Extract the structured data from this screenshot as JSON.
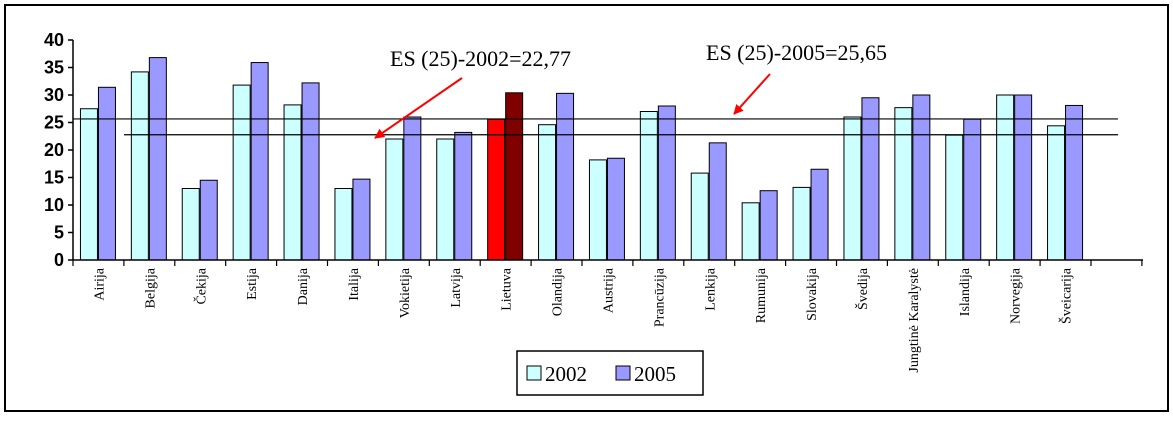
{
  "chart_data": {
    "type": "bar",
    "categories": [
      "Airija",
      "Belgija",
      "Čekija",
      "Estija",
      "Danija",
      "Italija",
      "Vokietija",
      "Latvija",
      "Lietuva",
      "Olandija",
      "Austrija",
      "Prancūzija",
      "Lenkija",
      "Rumunija",
      "Slovakija",
      "Švedija",
      "Jungtinė Karalystė",
      "Islandija",
      "Norvegija",
      "Šveicarija"
    ],
    "series": [
      {
        "name": "2002",
        "values": [
          27.5,
          34.2,
          13.0,
          31.8,
          28.2,
          13.0,
          22.0,
          22.0,
          25.6,
          24.6,
          18.2,
          27.0,
          15.8,
          10.4,
          13.2,
          26.0,
          27.7,
          22.7,
          30.0,
          24.4
        ]
      },
      {
        "name": "2005",
        "values": [
          31.4,
          36.8,
          14.5,
          35.9,
          32.2,
          14.7,
          26.0,
          23.2,
          30.4,
          30.3,
          18.5,
          28.0,
          21.3,
          12.6,
          16.5,
          29.5,
          30.0,
          25.6,
          30.0,
          28.1
        ]
      }
    ],
    "ylim": [
      0,
      40
    ],
    "yticks": [
      "0",
      "5",
      "10",
      "15",
      "20",
      "25",
      "30",
      "35",
      "40"
    ],
    "annotations": [
      {
        "text": "ES (25)-2002=22,77",
        "value": 22.77
      },
      {
        "text": "ES (25)-2005=25,65",
        "value": 25.65
      }
    ],
    "legend": [
      "2002",
      "2005"
    ],
    "colors": {
      "s2002": "#ccffff",
      "s2005": "#9999ff",
      "highlight2002": "#ff0000",
      "highlight2005": "#800000",
      "arrow": "#ff0000"
    },
    "highlight_category": "Lietuva"
  }
}
